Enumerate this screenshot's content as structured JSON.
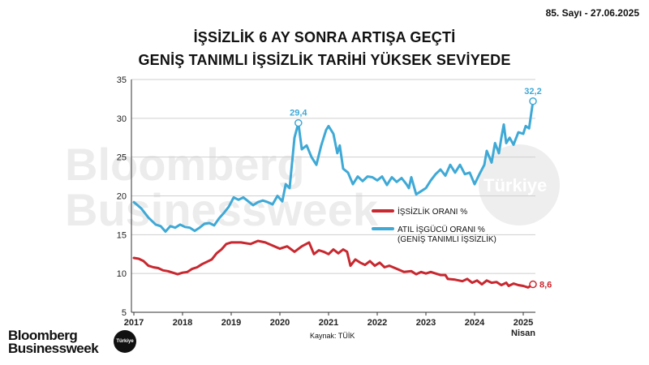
{
  "header": {
    "issue": "85. Sayı - 27.06.2025"
  },
  "titles": {
    "line1": "İŞSİZLİK 6 AY SONRA ARTIŞA GEÇTİ",
    "line2": "GENİŞ TANIMLI İŞSİZLİK TARİHİ YÜKSEK SEVİYEDE"
  },
  "footer": {
    "source": "Kaynak: TÜİK",
    "brand": "Bloomberg Businessweek",
    "brand_badge": "Türkiye"
  },
  "watermark": {
    "text1": "Bloomberg",
    "text2": "Businessweek",
    "badge": "Türkiye"
  },
  "colors": {
    "atil": "#3fa9d6",
    "issizlik": "#c8282f",
    "grid": "#cfcfcf"
  },
  "chart_data": {
    "type": "line",
    "x_unit": "year",
    "xlim": [
      2016.95,
      2025.25
    ],
    "ylim": [
      5,
      35
    ],
    "y_ticks": [
      5,
      10,
      15,
      20,
      25,
      30,
      35
    ],
    "x_ticks": [
      {
        "x": 2017,
        "label": "2017"
      },
      {
        "x": 2018,
        "label": "2018"
      },
      {
        "x": 2019,
        "label": "2019"
      },
      {
        "x": 2020,
        "label": "2020"
      },
      {
        "x": 2021,
        "label": "2021"
      },
      {
        "x": 2022,
        "label": "2022"
      },
      {
        "x": 2023,
        "label": "2023"
      },
      {
        "x": 2024,
        "label": "2024"
      },
      {
        "x": 2025,
        "label": "2025"
      }
    ],
    "x_last_label": "Nisan",
    "grid": "horizontal",
    "legend_position": "right",
    "series": [
      {
        "name": "ATIL İŞGÜCÜ ORANI %",
        "name_line2": "(GENİŞ TANIMLI İŞSİZLİK)",
        "color": "#3fa9d6",
        "points": [
          [
            2017.0,
            19.2
          ],
          [
            2017.15,
            18.4
          ],
          [
            2017.3,
            17.2
          ],
          [
            2017.45,
            16.3
          ],
          [
            2017.55,
            16.1
          ],
          [
            2017.65,
            15.4
          ],
          [
            2017.75,
            16.1
          ],
          [
            2017.85,
            15.9
          ],
          [
            2017.95,
            16.3
          ],
          [
            2018.05,
            16.0
          ],
          [
            2018.15,
            15.9
          ],
          [
            2018.25,
            15.5
          ],
          [
            2018.35,
            15.9
          ],
          [
            2018.45,
            16.4
          ],
          [
            2018.55,
            16.5
          ],
          [
            2018.65,
            16.2
          ],
          [
            2018.75,
            17.1
          ],
          [
            2018.85,
            17.8
          ],
          [
            2018.95,
            18.6
          ],
          [
            2019.05,
            19.8
          ],
          [
            2019.15,
            19.5
          ],
          [
            2019.25,
            19.8
          ],
          [
            2019.35,
            19.3
          ],
          [
            2019.45,
            18.8
          ],
          [
            2019.55,
            19.2
          ],
          [
            2019.65,
            19.4
          ],
          [
            2019.75,
            19.2
          ],
          [
            2019.85,
            18.9
          ],
          [
            2019.95,
            20.0
          ],
          [
            2020.05,
            19.3
          ],
          [
            2020.12,
            21.5
          ],
          [
            2020.2,
            21.0
          ],
          [
            2020.3,
            27.5
          ],
          [
            2020.38,
            29.4
          ],
          [
            2020.45,
            26.0
          ],
          [
            2020.55,
            26.5
          ],
          [
            2020.65,
            25.0
          ],
          [
            2020.75,
            24.0
          ],
          [
            2020.85,
            26.5
          ],
          [
            2020.95,
            28.5
          ],
          [
            2021.0,
            29.0
          ],
          [
            2021.1,
            28.0
          ],
          [
            2021.18,
            25.5
          ],
          [
            2021.23,
            26.5
          ],
          [
            2021.3,
            23.5
          ],
          [
            2021.4,
            23.0
          ],
          [
            2021.5,
            21.5
          ],
          [
            2021.6,
            22.5
          ],
          [
            2021.7,
            21.9
          ],
          [
            2021.8,
            22.5
          ],
          [
            2021.9,
            22.4
          ],
          [
            2022.0,
            22.0
          ],
          [
            2022.1,
            22.5
          ],
          [
            2022.2,
            21.4
          ],
          [
            2022.3,
            22.4
          ],
          [
            2022.4,
            21.8
          ],
          [
            2022.5,
            22.3
          ],
          [
            2022.6,
            21.5
          ],
          [
            2022.65,
            21.0
          ],
          [
            2022.7,
            22.4
          ],
          [
            2022.8,
            20.2
          ],
          [
            2022.9,
            20.6
          ],
          [
            2023.0,
            21.0
          ],
          [
            2023.1,
            22.0
          ],
          [
            2023.2,
            22.8
          ],
          [
            2023.3,
            23.4
          ],
          [
            2023.4,
            22.6
          ],
          [
            2023.5,
            24.0
          ],
          [
            2023.6,
            23.0
          ],
          [
            2023.7,
            24.0
          ],
          [
            2023.8,
            22.8
          ],
          [
            2023.9,
            23.0
          ],
          [
            2024.0,
            21.5
          ],
          [
            2024.1,
            22.8
          ],
          [
            2024.2,
            24.0
          ],
          [
            2024.25,
            25.8
          ],
          [
            2024.35,
            24.3
          ],
          [
            2024.42,
            26.8
          ],
          [
            2024.5,
            25.5
          ],
          [
            2024.55,
            27.5
          ],
          [
            2024.6,
            29.2
          ],
          [
            2024.65,
            26.8
          ],
          [
            2024.72,
            27.5
          ],
          [
            2024.8,
            26.6
          ],
          [
            2024.9,
            28.2
          ],
          [
            2025.0,
            28.0
          ],
          [
            2025.05,
            29.0
          ],
          [
            2025.12,
            28.7
          ],
          [
            2025.2,
            32.2
          ]
        ],
        "last_label": "32,2",
        "peak_label": "29,4",
        "peak_x": 2020.38
      },
      {
        "name": "İŞSİZLİK ORANI %",
        "color": "#c8282f",
        "points": [
          [
            2017.0,
            12.0
          ],
          [
            2017.1,
            11.9
          ],
          [
            2017.2,
            11.6
          ],
          [
            2017.3,
            11.0
          ],
          [
            2017.4,
            10.8
          ],
          [
            2017.5,
            10.7
          ],
          [
            2017.6,
            10.4
          ],
          [
            2017.7,
            10.3
          ],
          [
            2017.8,
            10.1
          ],
          [
            2017.9,
            9.9
          ],
          [
            2018.0,
            10.1
          ],
          [
            2018.1,
            10.2
          ],
          [
            2018.2,
            10.6
          ],
          [
            2018.3,
            10.8
          ],
          [
            2018.4,
            11.2
          ],
          [
            2018.5,
            11.5
          ],
          [
            2018.6,
            11.8
          ],
          [
            2018.7,
            12.6
          ],
          [
            2018.8,
            13.1
          ],
          [
            2018.9,
            13.8
          ],
          [
            2019.0,
            14.0
          ],
          [
            2019.2,
            14.0
          ],
          [
            2019.4,
            13.8
          ],
          [
            2019.55,
            14.2
          ],
          [
            2019.7,
            14.0
          ],
          [
            2019.85,
            13.6
          ],
          [
            2020.0,
            13.2
          ],
          [
            2020.15,
            13.5
          ],
          [
            2020.3,
            12.8
          ],
          [
            2020.45,
            13.5
          ],
          [
            2020.6,
            14.0
          ],
          [
            2020.7,
            12.5
          ],
          [
            2020.8,
            13.0
          ],
          [
            2020.9,
            12.8
          ],
          [
            2021.0,
            12.5
          ],
          [
            2021.1,
            13.1
          ],
          [
            2021.2,
            12.6
          ],
          [
            2021.3,
            13.1
          ],
          [
            2021.38,
            12.8
          ],
          [
            2021.45,
            11.0
          ],
          [
            2021.55,
            11.8
          ],
          [
            2021.65,
            11.4
          ],
          [
            2021.75,
            11.1
          ],
          [
            2021.85,
            11.6
          ],
          [
            2021.95,
            11.0
          ],
          [
            2022.05,
            11.4
          ],
          [
            2022.15,
            10.8
          ],
          [
            2022.25,
            11.0
          ],
          [
            2022.4,
            10.6
          ],
          [
            2022.55,
            10.2
          ],
          [
            2022.7,
            10.3
          ],
          [
            2022.8,
            9.9
          ],
          [
            2022.9,
            10.2
          ],
          [
            2023.0,
            10.0
          ],
          [
            2023.1,
            10.2
          ],
          [
            2023.2,
            10.0
          ],
          [
            2023.3,
            9.8
          ],
          [
            2023.4,
            9.8
          ],
          [
            2023.45,
            9.3
          ],
          [
            2023.6,
            9.2
          ],
          [
            2023.75,
            9.0
          ],
          [
            2023.85,
            9.3
          ],
          [
            2023.95,
            8.8
          ],
          [
            2024.05,
            9.1
          ],
          [
            2024.15,
            8.6
          ],
          [
            2024.25,
            9.1
          ],
          [
            2024.35,
            8.8
          ],
          [
            2024.45,
            8.9
          ],
          [
            2024.55,
            8.5
          ],
          [
            2024.65,
            8.8
          ],
          [
            2024.7,
            8.4
          ],
          [
            2024.8,
            8.7
          ],
          [
            2024.9,
            8.5
          ],
          [
            2025.0,
            8.4
          ],
          [
            2025.1,
            8.2
          ],
          [
            2025.2,
            8.6
          ]
        ],
        "last_label": "8,6"
      }
    ]
  }
}
